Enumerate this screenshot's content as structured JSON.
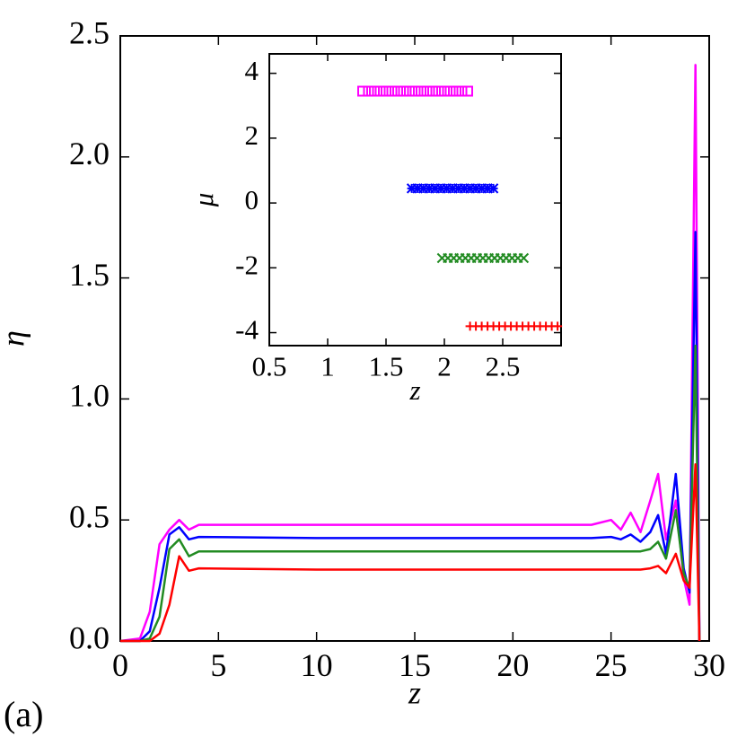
{
  "chart_data": [
    {
      "type": "line",
      "xlabel": "z",
      "ylabel": "η",
      "annotation": "(a)",
      "xlim": [
        0,
        30
      ],
      "ylim": [
        0,
        2.5
      ],
      "xticks": [
        0,
        5,
        10,
        15,
        20,
        25,
        30
      ],
      "yticks": [
        {
          "value": 0,
          "label": "0.0"
        },
        0.5,
        {
          "value": 1,
          "label": "1.0"
        },
        1.5,
        {
          "value": 2,
          "label": "2.0"
        },
        2.5
      ],
      "x": [
        0,
        1,
        1.5,
        2,
        2.5,
        3,
        3.5,
        4,
        10,
        20,
        24,
        25,
        25.5,
        26,
        26.5,
        27,
        27.4,
        27.8,
        28.3,
        28.7,
        29,
        29.3,
        29.5
      ],
      "series": [
        {
          "color": "#ff00ff",
          "values": [
            0,
            0.01,
            0.12,
            0.4,
            0.46,
            0.5,
            0.46,
            0.48,
            0.48,
            0.48,
            0.48,
            0.5,
            0.46,
            0.53,
            0.45,
            0.58,
            0.69,
            0.42,
            0.58,
            0.26,
            0.15,
            2.38,
            0
          ]
        },
        {
          "color": "#0000ff",
          "values": [
            0,
            0,
            0.04,
            0.22,
            0.44,
            0.47,
            0.42,
            0.43,
            0.425,
            0.425,
            0.425,
            0.43,
            0.42,
            0.44,
            0.41,
            0.45,
            0.52,
            0.36,
            0.69,
            0.3,
            0.2,
            1.69,
            0
          ]
        },
        {
          "color": "#228b22",
          "values": [
            0,
            0,
            0.01,
            0.1,
            0.38,
            0.42,
            0.35,
            0.37,
            0.37,
            0.37,
            0.37,
            0.37,
            0.37,
            0.37,
            0.37,
            0.38,
            0.41,
            0.34,
            0.54,
            0.28,
            0.22,
            1.22,
            0
          ]
        },
        {
          "color": "#ff0000",
          "values": [
            0,
            0,
            0,
            0.03,
            0.15,
            0.35,
            0.29,
            0.3,
            0.295,
            0.295,
            0.295,
            0.295,
            0.295,
            0.295,
            0.295,
            0.3,
            0.31,
            0.28,
            0.36,
            0.25,
            0.22,
            0.73,
            0
          ]
        }
      ]
    },
    {
      "type": "scatter",
      "xlabel": "z",
      "ylabel": "μ",
      "xlim": [
        0.5,
        3.0
      ],
      "ylim": [
        -4.4,
        4.6
      ],
      "xticks": [
        0.5,
        1,
        1.5,
        2,
        2.5
      ],
      "yticks": [
        4,
        2,
        0,
        -2,
        -4
      ],
      "series": [
        {
          "color": "#ff00ff",
          "marker": "square",
          "x": [
            1.3,
            1.35,
            1.4,
            1.45,
            1.5,
            1.55,
            1.6,
            1.65,
            1.7,
            1.75,
            1.8,
            1.85,
            1.9,
            1.95,
            2.0,
            2.05,
            2.1,
            2.15,
            2.2
          ],
          "values": [
            3.45,
            3.45,
            3.45,
            3.45,
            3.45,
            3.45,
            3.45,
            3.45,
            3.45,
            3.45,
            3.45,
            3.45,
            3.45,
            3.45,
            3.45,
            3.45,
            3.45,
            3.45,
            3.45
          ]
        },
        {
          "color": "#0000ff",
          "marker": "star",
          "x": [
            1.72,
            1.77,
            1.82,
            1.87,
            1.92,
            1.97,
            2.02,
            2.07,
            2.12,
            2.17,
            2.22,
            2.27,
            2.32,
            2.37,
            2.42
          ],
          "values": [
            0.45,
            0.45,
            0.45,
            0.45,
            0.45,
            0.45,
            0.45,
            0.45,
            0.45,
            0.45,
            0.45,
            0.45,
            0.45,
            0.45,
            0.45
          ]
        },
        {
          "color": "#228b22",
          "marker": "cross",
          "x": [
            1.98,
            2.03,
            2.08,
            2.13,
            2.18,
            2.23,
            2.28,
            2.33,
            2.38,
            2.43,
            2.48,
            2.53,
            2.58,
            2.63,
            2.68
          ],
          "values": [
            -1.7,
            -1.7,
            -1.7,
            -1.7,
            -1.7,
            -1.7,
            -1.7,
            -1.7,
            -1.7,
            -1.7,
            -1.7,
            -1.7,
            -1.7,
            -1.7,
            -1.7
          ]
        },
        {
          "color": "#ff0000",
          "marker": "plus",
          "x": [
            2.22,
            2.27,
            2.32,
            2.37,
            2.42,
            2.47,
            2.52,
            2.57,
            2.62,
            2.67,
            2.72,
            2.77,
            2.82,
            2.87,
            2.92,
            2.97
          ],
          "values": [
            -3.8,
            -3.8,
            -3.8,
            -3.8,
            -3.8,
            -3.8,
            -3.8,
            -3.8,
            -3.8,
            -3.8,
            -3.8,
            -3.8,
            -3.8,
            -3.8,
            -3.8,
            -3.8
          ]
        }
      ]
    }
  ]
}
